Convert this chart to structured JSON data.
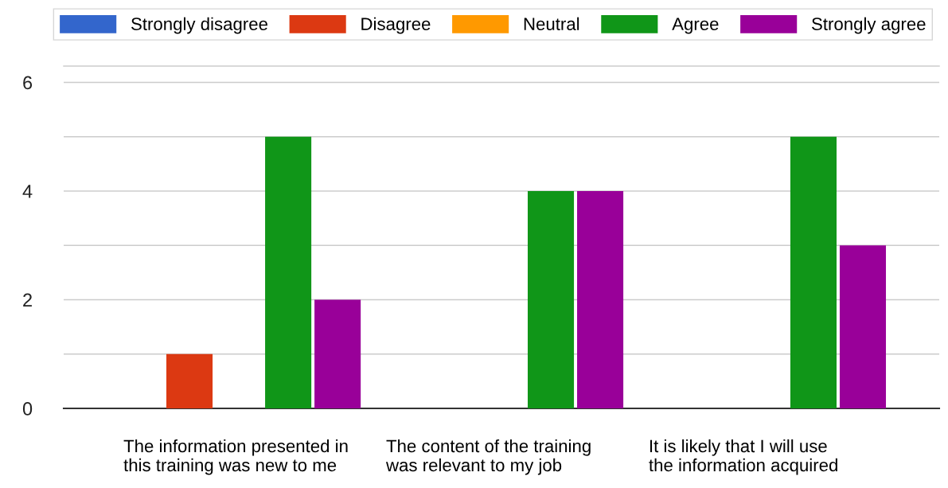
{
  "chart_data": {
    "type": "bar",
    "categories": [
      "The information presented in\nthis training was new to me",
      "The content of the training\nwas relevant to my job",
      "It is likely that I will use\nthe information acquired"
    ],
    "series": [
      {
        "name": "Strongly disagree",
        "color": "#3366cc",
        "values": [
          0,
          0,
          0
        ]
      },
      {
        "name": "Disagree",
        "color": "#dc3912",
        "values": [
          1,
          0,
          0
        ]
      },
      {
        "name": "Neutral",
        "color": "#ff9900",
        "values": [
          0,
          0,
          0
        ]
      },
      {
        "name": "Agree",
        "color": "#109618",
        "values": [
          5,
          4,
          5
        ]
      },
      {
        "name": "Strongly agree",
        "color": "#990099",
        "values": [
          2,
          4,
          3
        ]
      }
    ],
    "ylim": [
      0,
      6.3
    ],
    "yticks": [
      0,
      {
        "value": 1,
        "label": null
      },
      2,
      {
        "value": 3,
        "label": null
      },
      4,
      {
        "value": 5,
        "label": null
      },
      6
    ],
    "grid": "y",
    "legend": "top"
  }
}
